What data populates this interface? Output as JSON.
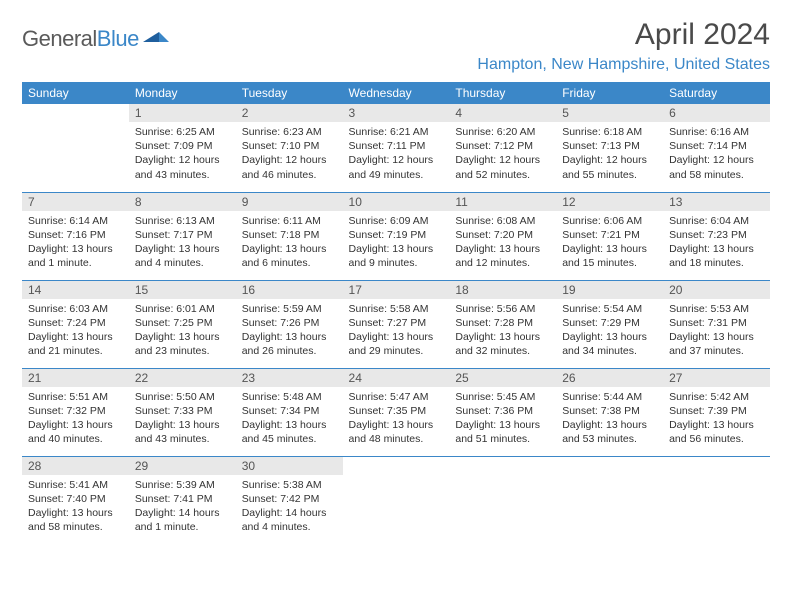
{
  "logo": {
    "part1": "General",
    "part2": "Blue"
  },
  "title": "April 2024",
  "location": "Hampton, New Hampshire, United States",
  "columns": [
    "Sunday",
    "Monday",
    "Tuesday",
    "Wednesday",
    "Thursday",
    "Friday",
    "Saturday"
  ],
  "colors": {
    "accent": "#3b87c8",
    "header_text": "#ffffff",
    "daynum_bg": "#e8e8e8",
    "body_text": "#333333",
    "title_text": "#4a4a4a"
  },
  "weeks": [
    [
      null,
      {
        "n": "1",
        "sr": "Sunrise: 6:25 AM",
        "ss": "Sunset: 7:09 PM",
        "dl": "Daylight: 12 hours and 43 minutes."
      },
      {
        "n": "2",
        "sr": "Sunrise: 6:23 AM",
        "ss": "Sunset: 7:10 PM",
        "dl": "Daylight: 12 hours and 46 minutes."
      },
      {
        "n": "3",
        "sr": "Sunrise: 6:21 AM",
        "ss": "Sunset: 7:11 PM",
        "dl": "Daylight: 12 hours and 49 minutes."
      },
      {
        "n": "4",
        "sr": "Sunrise: 6:20 AM",
        "ss": "Sunset: 7:12 PM",
        "dl": "Daylight: 12 hours and 52 minutes."
      },
      {
        "n": "5",
        "sr": "Sunrise: 6:18 AM",
        "ss": "Sunset: 7:13 PM",
        "dl": "Daylight: 12 hours and 55 minutes."
      },
      {
        "n": "6",
        "sr": "Sunrise: 6:16 AM",
        "ss": "Sunset: 7:14 PM",
        "dl": "Daylight: 12 hours and 58 minutes."
      }
    ],
    [
      {
        "n": "7",
        "sr": "Sunrise: 6:14 AM",
        "ss": "Sunset: 7:16 PM",
        "dl": "Daylight: 13 hours and 1 minute."
      },
      {
        "n": "8",
        "sr": "Sunrise: 6:13 AM",
        "ss": "Sunset: 7:17 PM",
        "dl": "Daylight: 13 hours and 4 minutes."
      },
      {
        "n": "9",
        "sr": "Sunrise: 6:11 AM",
        "ss": "Sunset: 7:18 PM",
        "dl": "Daylight: 13 hours and 6 minutes."
      },
      {
        "n": "10",
        "sr": "Sunrise: 6:09 AM",
        "ss": "Sunset: 7:19 PM",
        "dl": "Daylight: 13 hours and 9 minutes."
      },
      {
        "n": "11",
        "sr": "Sunrise: 6:08 AM",
        "ss": "Sunset: 7:20 PM",
        "dl": "Daylight: 13 hours and 12 minutes."
      },
      {
        "n": "12",
        "sr": "Sunrise: 6:06 AM",
        "ss": "Sunset: 7:21 PM",
        "dl": "Daylight: 13 hours and 15 minutes."
      },
      {
        "n": "13",
        "sr": "Sunrise: 6:04 AM",
        "ss": "Sunset: 7:23 PM",
        "dl": "Daylight: 13 hours and 18 minutes."
      }
    ],
    [
      {
        "n": "14",
        "sr": "Sunrise: 6:03 AM",
        "ss": "Sunset: 7:24 PM",
        "dl": "Daylight: 13 hours and 21 minutes."
      },
      {
        "n": "15",
        "sr": "Sunrise: 6:01 AM",
        "ss": "Sunset: 7:25 PM",
        "dl": "Daylight: 13 hours and 23 minutes."
      },
      {
        "n": "16",
        "sr": "Sunrise: 5:59 AM",
        "ss": "Sunset: 7:26 PM",
        "dl": "Daylight: 13 hours and 26 minutes."
      },
      {
        "n": "17",
        "sr": "Sunrise: 5:58 AM",
        "ss": "Sunset: 7:27 PM",
        "dl": "Daylight: 13 hours and 29 minutes."
      },
      {
        "n": "18",
        "sr": "Sunrise: 5:56 AM",
        "ss": "Sunset: 7:28 PM",
        "dl": "Daylight: 13 hours and 32 minutes."
      },
      {
        "n": "19",
        "sr": "Sunrise: 5:54 AM",
        "ss": "Sunset: 7:29 PM",
        "dl": "Daylight: 13 hours and 34 minutes."
      },
      {
        "n": "20",
        "sr": "Sunrise: 5:53 AM",
        "ss": "Sunset: 7:31 PM",
        "dl": "Daylight: 13 hours and 37 minutes."
      }
    ],
    [
      {
        "n": "21",
        "sr": "Sunrise: 5:51 AM",
        "ss": "Sunset: 7:32 PM",
        "dl": "Daylight: 13 hours and 40 minutes."
      },
      {
        "n": "22",
        "sr": "Sunrise: 5:50 AM",
        "ss": "Sunset: 7:33 PM",
        "dl": "Daylight: 13 hours and 43 minutes."
      },
      {
        "n": "23",
        "sr": "Sunrise: 5:48 AM",
        "ss": "Sunset: 7:34 PM",
        "dl": "Daylight: 13 hours and 45 minutes."
      },
      {
        "n": "24",
        "sr": "Sunrise: 5:47 AM",
        "ss": "Sunset: 7:35 PM",
        "dl": "Daylight: 13 hours and 48 minutes."
      },
      {
        "n": "25",
        "sr": "Sunrise: 5:45 AM",
        "ss": "Sunset: 7:36 PM",
        "dl": "Daylight: 13 hours and 51 minutes."
      },
      {
        "n": "26",
        "sr": "Sunrise: 5:44 AM",
        "ss": "Sunset: 7:38 PM",
        "dl": "Daylight: 13 hours and 53 minutes."
      },
      {
        "n": "27",
        "sr": "Sunrise: 5:42 AM",
        "ss": "Sunset: 7:39 PM",
        "dl": "Daylight: 13 hours and 56 minutes."
      }
    ],
    [
      {
        "n": "28",
        "sr": "Sunrise: 5:41 AM",
        "ss": "Sunset: 7:40 PM",
        "dl": "Daylight: 13 hours and 58 minutes."
      },
      {
        "n": "29",
        "sr": "Sunrise: 5:39 AM",
        "ss": "Sunset: 7:41 PM",
        "dl": "Daylight: 14 hours and 1 minute."
      },
      {
        "n": "30",
        "sr": "Sunrise: 5:38 AM",
        "ss": "Sunset: 7:42 PM",
        "dl": "Daylight: 14 hours and 4 minutes."
      },
      null,
      null,
      null,
      null
    ]
  ]
}
